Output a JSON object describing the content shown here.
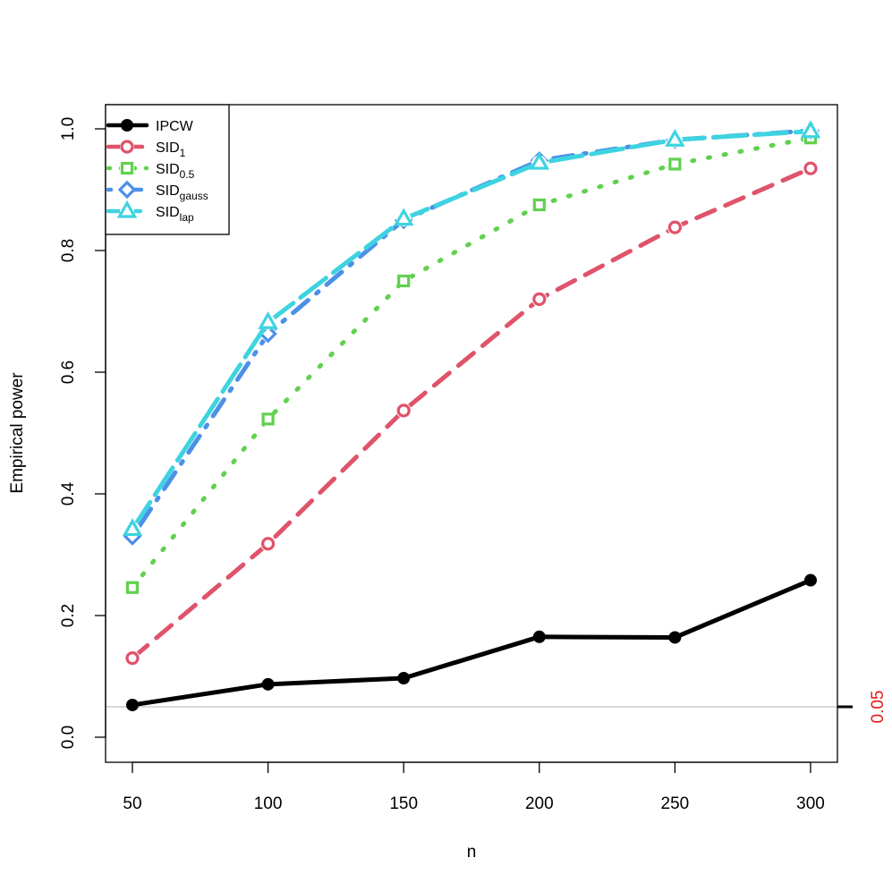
{
  "chart_data": {
    "type": "line",
    "title": "",
    "xlabel": "n",
    "ylabel": "Empirical power",
    "x": [
      50,
      100,
      150,
      200,
      250,
      300
    ],
    "xlim": [
      50,
      300
    ],
    "ylim": [
      0,
      1
    ],
    "xticks": [
      50,
      100,
      150,
      200,
      250,
      300
    ],
    "yticks": [
      0.0,
      0.2,
      0.4,
      0.6,
      0.8,
      1.0
    ],
    "ytick_labels": [
      "0.0",
      "0.2",
      "0.4",
      "0.6",
      "0.8",
      "1.0"
    ],
    "grid": false,
    "legend_position": "top-left",
    "reference_line": {
      "value": 0.05,
      "label": "0.05",
      "line_color": "#cccccc",
      "label_color": "#e31a1c"
    },
    "series": [
      {
        "key": "ipcw",
        "name": "IPCW",
        "sub": "",
        "color": "#000000",
        "dash": "solid",
        "marker": "filled-circle",
        "values": [
          0.053,
          0.087,
          0.097,
          0.165,
          0.164,
          0.258
        ]
      },
      {
        "key": "sid1",
        "name": "SID",
        "sub": "1",
        "color": "#df536b",
        "dash": "dashed",
        "marker": "open-circle",
        "values": [
          0.13,
          0.318,
          0.537,
          0.72,
          0.838,
          0.935
        ]
      },
      {
        "key": "sid05",
        "name": "SID",
        "sub": "0.5",
        "color": "#61d04f",
        "dash": "dotted",
        "marker": "open-square",
        "values": [
          0.246,
          0.523,
          0.75,
          0.875,
          0.942,
          0.985
        ]
      },
      {
        "key": "sidgauss",
        "name": "SID",
        "sub": "gauss",
        "color": "#4c90e8",
        "dash": "dotdash",
        "marker": "open-diamond",
        "values": [
          0.33,
          0.663,
          0.85,
          0.948,
          0.982,
          0.997
        ]
      },
      {
        "key": "sidlap",
        "name": "SID",
        "sub": "lap",
        "color": "#3ed3e0",
        "dash": "longdash",
        "marker": "open-triangle",
        "values": [
          0.342,
          0.682,
          0.852,
          0.944,
          0.982,
          0.996
        ]
      }
    ]
  }
}
